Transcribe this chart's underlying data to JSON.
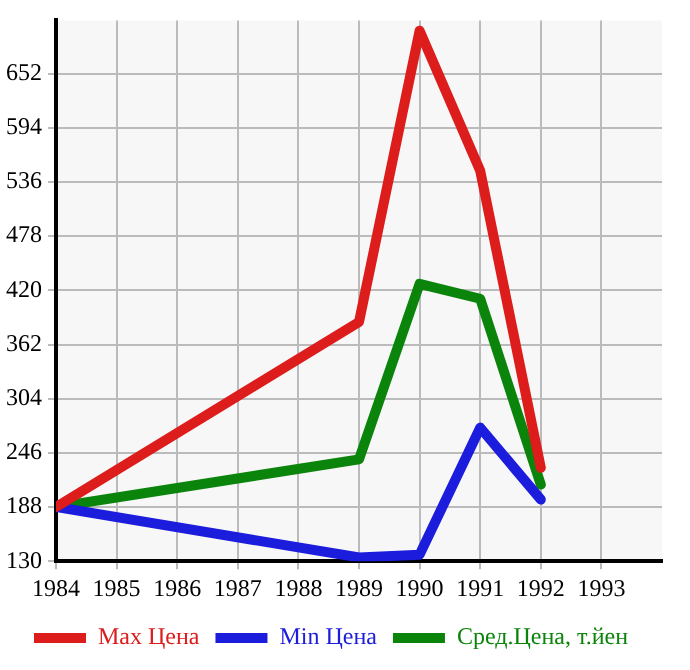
{
  "chart_data": {
    "type": "line",
    "x": [
      1984,
      1989,
      1990,
      1991,
      1992
    ],
    "xlim": [
      1984,
      1994
    ],
    "xticks": [
      1984,
      1985,
      1986,
      1987,
      1988,
      1989,
      1990,
      1991,
      1992,
      1993
    ],
    "ylim": [
      130,
      709
    ],
    "yticks": [
      130,
      188,
      246,
      304,
      362,
      420,
      478,
      536,
      594,
      652
    ],
    "grid": true,
    "legend": "bottom",
    "marker": "none",
    "series": [
      {
        "name": "Max Цена",
        "color": "#dd1c1c",
        "values": [
          188,
          386,
          698,
          548,
          230
        ]
      },
      {
        "name": "Min Цена",
        "color": "#1c1cdd",
        "values": [
          188,
          134,
          137,
          273,
          196
        ]
      },
      {
        "name": "Сред.Цена, т.йен",
        "color": "#0a840a",
        "values": [
          188,
          239,
          427,
          411,
          212
        ]
      }
    ]
  }
}
